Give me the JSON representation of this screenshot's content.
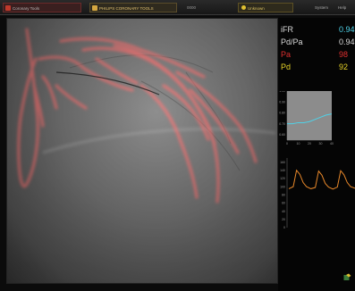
{
  "topbar": {
    "app_label": "Coronary Tools",
    "tool_label": "PHILIPS CORONARY TOOLS",
    "segment_label": "0000",
    "status_label": "Unknown",
    "system_label": "System",
    "help_label": "Help"
  },
  "metrics": {
    "ifr": {
      "label": "iFR",
      "value": "0.94"
    },
    "pdpa": {
      "label": "Pd/Pa",
      "value": "0.94"
    },
    "pa": {
      "label": "Pa",
      "value": "98"
    },
    "pd": {
      "label": "Pd",
      "value": "92"
    }
  },
  "colors": {
    "ifr_value": "#4fd2e8",
    "pa": "#e03030",
    "pd": "#e8d428",
    "vessel_overlay": "#ff7070",
    "pressure_wave": "#e8882a"
  },
  "chart_data": [
    {
      "type": "line",
      "x": [
        0,
        10,
        20,
        30,
        40,
        50,
        60,
        70,
        80
      ],
      "series": [
        {
          "values": [
            0.7,
            0.7,
            0.71,
            0.71,
            0.72,
            0.74,
            0.76,
            0.78,
            0.79
          ]
        }
      ],
      "xticks": [
        "0",
        "10",
        "20",
        "30",
        "40"
      ],
      "yticks": [
        "0.60",
        "0.70",
        "0.80",
        "0.90",
        "1.00"
      ],
      "ylim": [
        0.55,
        1.0
      ],
      "xlim": [
        0,
        80
      ]
    },
    {
      "type": "line",
      "x": [
        0,
        4,
        7,
        10,
        13,
        16,
        20,
        24,
        27,
        30,
        33,
        36,
        40,
        44,
        47,
        50,
        53,
        56,
        60
      ],
      "series": [
        {
          "values": [
            95,
            100,
            140,
            130,
            110,
            100,
            95,
            98,
            138,
            128,
            108,
            99,
            94,
            99,
            139,
            129,
            110,
            100,
            96
          ]
        }
      ],
      "yticks": [
        "160",
        "140",
        "120",
        "100",
        "80",
        "60",
        "40",
        "20",
        "0"
      ],
      "ylim": [
        0,
        170
      ]
    }
  ]
}
